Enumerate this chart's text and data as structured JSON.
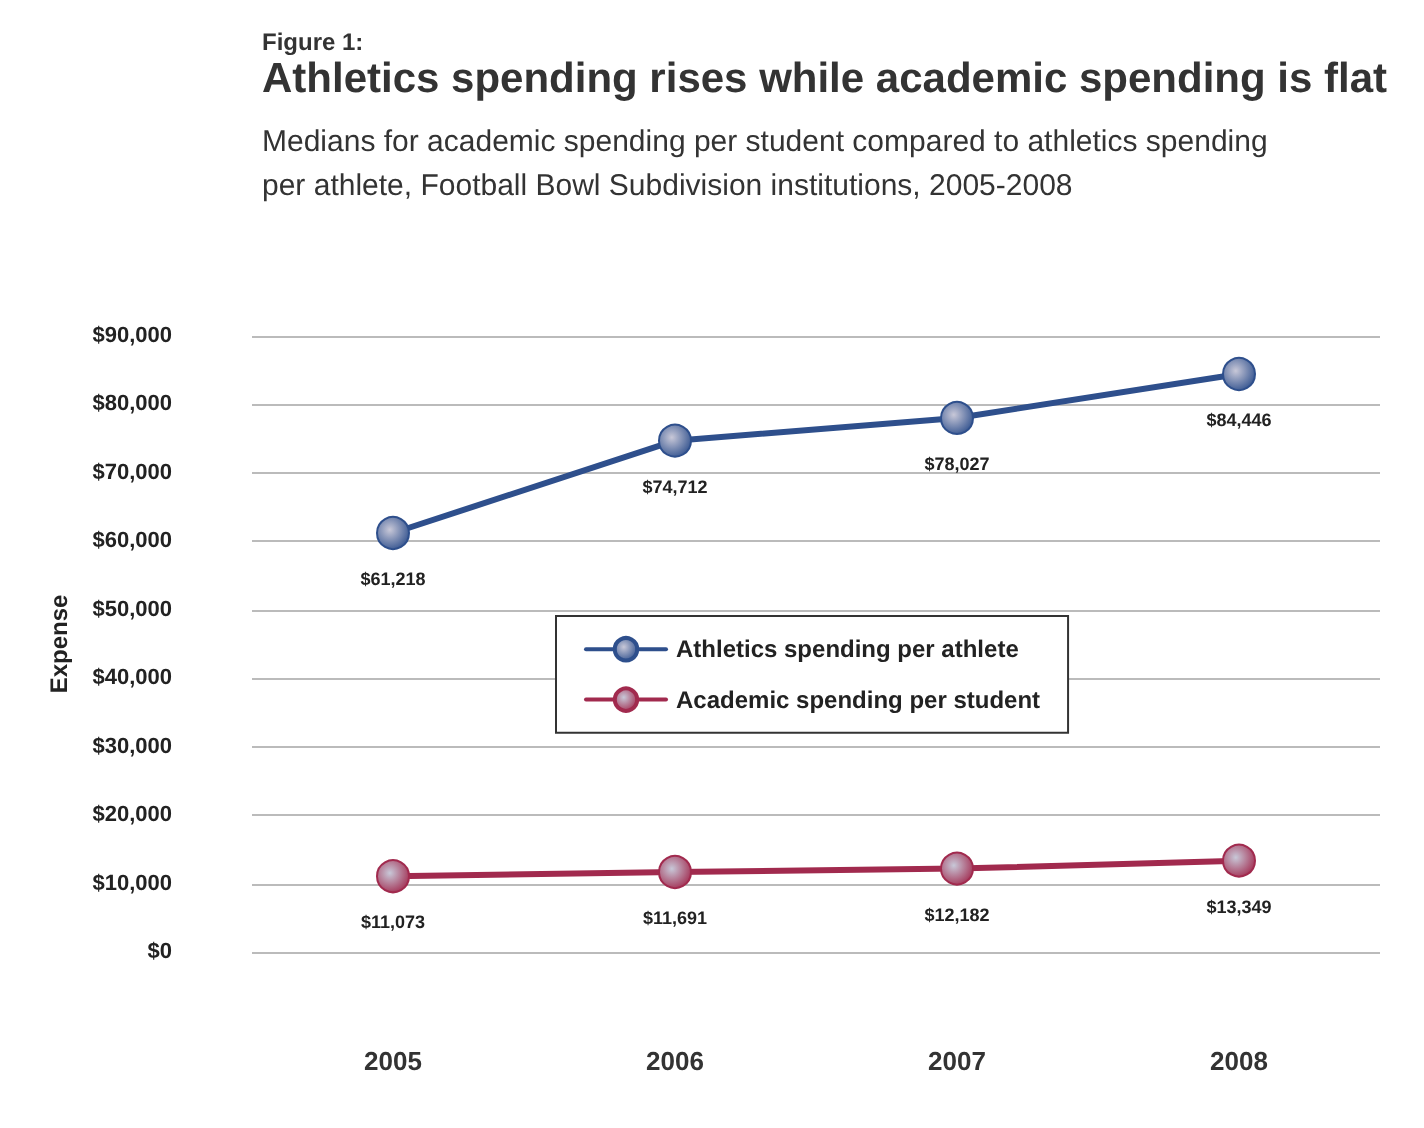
{
  "chart_data": {
    "type": "line",
    "title": "Athletics spending rises while academic spending is flat",
    "subtitle": "Medians for academic spending per student compared to athletics spending\nper athlete, Football Bowl Subdivision institutions, 2005-2008",
    "annotations": [
      "Figure 1:"
    ],
    "ylabel": "Expense",
    "categories": [
      "2005",
      "2006",
      "2007",
      "2008"
    ],
    "series": [
      {
        "name": "Athletics spending per athlete",
        "color": "#2e4f8c",
        "values": [
          61218,
          74712,
          78027,
          84446
        ],
        "value_labels": [
          "$61,218",
          "$74,712",
          "$78,027",
          "$84,446"
        ]
      },
      {
        "name": "Academic spending per student",
        "color": "#a12a4e",
        "values": [
          11073,
          11691,
          12182,
          13349
        ],
        "value_labels": [
          "$11,073",
          "$11,691",
          "$12,182",
          "$13,349"
        ]
      }
    ],
    "ylim": [
      0,
      90000
    ],
    "yticks": [
      {
        "value": 0,
        "label": "$0"
      },
      {
        "value": 10000,
        "label": "$10,000"
      },
      {
        "value": 20000,
        "label": "$20,000"
      },
      {
        "value": 30000,
        "label": "$30,000"
      },
      {
        "value": 40000,
        "label": "$40,000"
      },
      {
        "value": 50000,
        "label": "$50,000"
      },
      {
        "value": 60000,
        "label": "$60,000"
      },
      {
        "value": 70000,
        "label": "$70,000"
      },
      {
        "value": 80000,
        "label": "$80,000"
      },
      {
        "value": 90000,
        "label": "$90,000"
      }
    ],
    "grid": "y",
    "legend": "center",
    "marker": "circle",
    "line_style": "solid"
  }
}
